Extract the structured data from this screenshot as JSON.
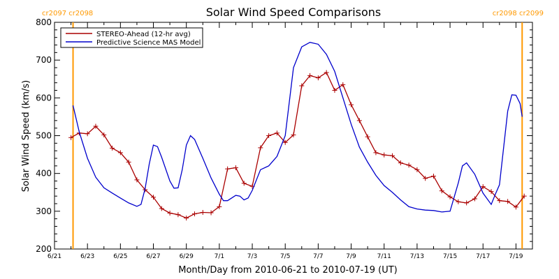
{
  "chart_data": {
    "type": "line",
    "title": "Solar Wind Speed Comparisons",
    "xlabel": "Month/Day from 2010-06-21 to 2010-07-19 (UT)",
    "ylabel": "Solar Wind Speed (km/s)",
    "xlim": [
      "2010-06-21",
      "2010-07-20"
    ],
    "ylim": [
      200,
      800
    ],
    "x_tick_labels": [
      {
        "date": "2010-06-21",
        "label": "6/21"
      },
      {
        "date": "2010-06-23",
        "label": "6/23"
      },
      {
        "date": "2010-06-25",
        "label": "6/25"
      },
      {
        "date": "2010-06-27",
        "label": "6/27"
      },
      {
        "date": "2010-06-29",
        "label": "6/29"
      },
      {
        "date": "2010-07-01",
        "label": "7/1"
      },
      {
        "date": "2010-07-03",
        "label": "7/3"
      },
      {
        "date": "2010-07-05",
        "label": "7/5"
      },
      {
        "date": "2010-07-07",
        "label": "7/7"
      },
      {
        "date": "2010-07-09",
        "label": "7/9"
      },
      {
        "date": "2010-07-11",
        "label": "7/11"
      },
      {
        "date": "2010-07-13",
        "label": "7/13"
      },
      {
        "date": "2010-07-15",
        "label": "7/15"
      },
      {
        "date": "2010-07-17",
        "label": "7/17"
      },
      {
        "date": "2010-07-19",
        "label": "7/19"
      }
    ],
    "y_ticks": [
      200,
      300,
      400,
      500,
      600,
      700,
      800
    ],
    "legend_position": "top-left",
    "rotation_markers": [
      {
        "date": "2010-06-22 03:00",
        "label": "cr2097 cr2098",
        "color": "#ff9900",
        "label_side": "left"
      },
      {
        "date": "2010-07-19 09:00",
        "label": "cr2098 cr2099",
        "color": "#ff9900",
        "label_side": "right"
      }
    ],
    "series": [
      {
        "name": "STEREO-Ahead (12-hr avg)",
        "color": "#aa0000",
        "marker": "plus",
        "points": [
          [
            "2010-06-22 00:00",
            495
          ],
          [
            "2010-06-22 12:00",
            507
          ],
          [
            "2010-06-23 00:00",
            505
          ],
          [
            "2010-06-23 12:00",
            525
          ],
          [
            "2010-06-24 00:00",
            502
          ],
          [
            "2010-06-24 12:00",
            467
          ],
          [
            "2010-06-25 00:00",
            455
          ],
          [
            "2010-06-25 12:00",
            430
          ],
          [
            "2010-06-26 00:00",
            383
          ],
          [
            "2010-06-26 12:00",
            357
          ],
          [
            "2010-06-27 00:00",
            337
          ],
          [
            "2010-06-27 12:00",
            307
          ],
          [
            "2010-06-28 00:00",
            295
          ],
          [
            "2010-06-28 12:00",
            291
          ],
          [
            "2010-06-29 00:00",
            282
          ],
          [
            "2010-06-29 12:00",
            293
          ],
          [
            "2010-06-30 00:00",
            297
          ],
          [
            "2010-06-30 12:00",
            296
          ],
          [
            "2010-07-01 00:00",
            312
          ],
          [
            "2010-07-01 12:00",
            412
          ],
          [
            "2010-07-02 00:00",
            415
          ],
          [
            "2010-07-02 12:00",
            374
          ],
          [
            "2010-07-03 00:00",
            366
          ],
          [
            "2010-07-03 12:00",
            468
          ],
          [
            "2010-07-04 00:00",
            500
          ],
          [
            "2010-07-04 12:00",
            507
          ],
          [
            "2010-07-05 00:00",
            482
          ],
          [
            "2010-07-05 12:00",
            502
          ],
          [
            "2010-07-06 00:00",
            632
          ],
          [
            "2010-07-06 12:00",
            659
          ],
          [
            "2010-07-07 00:00",
            653
          ],
          [
            "2010-07-07 12:00",
            667
          ],
          [
            "2010-07-08 00:00",
            620
          ],
          [
            "2010-07-08 12:00",
            635
          ],
          [
            "2010-07-09 00:00",
            582
          ],
          [
            "2010-07-09 12:00",
            540
          ],
          [
            "2010-07-10 00:00",
            497
          ],
          [
            "2010-07-10 12:00",
            455
          ],
          [
            "2010-07-11 00:00",
            449
          ],
          [
            "2010-07-11 12:00",
            447
          ],
          [
            "2010-07-12 00:00",
            428
          ],
          [
            "2010-07-12 12:00",
            422
          ],
          [
            "2010-07-13 00:00",
            410
          ],
          [
            "2010-07-13 12:00",
            387
          ],
          [
            "2010-07-14 00:00",
            393
          ],
          [
            "2010-07-14 12:00",
            354
          ],
          [
            "2010-07-15 00:00",
            338
          ],
          [
            "2010-07-15 12:00",
            325
          ],
          [
            "2010-07-16 00:00",
            322
          ],
          [
            "2010-07-16 12:00",
            333
          ],
          [
            "2010-07-17 00:00",
            365
          ],
          [
            "2010-07-17 12:00",
            352
          ],
          [
            "2010-07-18 00:00",
            328
          ],
          [
            "2010-07-18 12:00",
            326
          ],
          [
            "2010-07-19 00:00",
            311
          ],
          [
            "2010-07-19 12:00",
            340
          ]
        ]
      },
      {
        "name": "Predictive Science MAS Model",
        "color": "#0000cc",
        "marker": "none",
        "points": [
          [
            "2010-06-22 03:00",
            580
          ],
          [
            "2010-06-22 12:00",
            510
          ],
          [
            "2010-06-23 00:00",
            440
          ],
          [
            "2010-06-23 12:00",
            390
          ],
          [
            "2010-06-24 00:00",
            362
          ],
          [
            "2010-06-24 12:00",
            348
          ],
          [
            "2010-06-25 00:00",
            335
          ],
          [
            "2010-06-25 12:00",
            322
          ],
          [
            "2010-06-26 00:00",
            313
          ],
          [
            "2010-06-26 06:00",
            318
          ],
          [
            "2010-06-26 12:00",
            360
          ],
          [
            "2010-06-26 18:00",
            425
          ],
          [
            "2010-06-27 00:00",
            475
          ],
          [
            "2010-06-27 06:00",
            471
          ],
          [
            "2010-06-27 12:00",
            443
          ],
          [
            "2010-06-28 00:00",
            380
          ],
          [
            "2010-06-28 06:00",
            361
          ],
          [
            "2010-06-28 12:00",
            362
          ],
          [
            "2010-06-28 18:00",
            410
          ],
          [
            "2010-06-29 00:00",
            475
          ],
          [
            "2010-06-29 06:00",
            500
          ],
          [
            "2010-06-29 12:00",
            490
          ],
          [
            "2010-06-30 00:00",
            440
          ],
          [
            "2010-06-30 12:00",
            388
          ],
          [
            "2010-07-01 00:00",
            345
          ],
          [
            "2010-07-01 06:00",
            328
          ],
          [
            "2010-07-01 12:00",
            328
          ],
          [
            "2010-07-02 00:00",
            342
          ],
          [
            "2010-07-02 06:00",
            340
          ],
          [
            "2010-07-02 12:00",
            330
          ],
          [
            "2010-07-02 18:00",
            335
          ],
          [
            "2010-07-03 00:00",
            355
          ],
          [
            "2010-07-03 12:00",
            410
          ],
          [
            "2010-07-04 00:00",
            420
          ],
          [
            "2010-07-04 12:00",
            445
          ],
          [
            "2010-07-05 00:00",
            500
          ],
          [
            "2010-07-05 12:00",
            680
          ],
          [
            "2010-07-06 00:00",
            735
          ],
          [
            "2010-07-06 12:00",
            747
          ],
          [
            "2010-07-07 00:00",
            742
          ],
          [
            "2010-07-07 12:00",
            715
          ],
          [
            "2010-07-08 00:00",
            670
          ],
          [
            "2010-07-08 12:00",
            600
          ],
          [
            "2010-07-09 00:00",
            530
          ],
          [
            "2010-07-09 12:00",
            470
          ],
          [
            "2010-07-10 00:00",
            430
          ],
          [
            "2010-07-10 12:00",
            395
          ],
          [
            "2010-07-11 00:00",
            368
          ],
          [
            "2010-07-11 12:00",
            350
          ],
          [
            "2010-07-12 00:00",
            330
          ],
          [
            "2010-07-12 12:00",
            312
          ],
          [
            "2010-07-13 00:00",
            306
          ],
          [
            "2010-07-13 12:00",
            303
          ],
          [
            "2010-07-14 00:00",
            302
          ],
          [
            "2010-07-14 12:00",
            298
          ],
          [
            "2010-07-15 00:00",
            300
          ],
          [
            "2010-07-15 12:00",
            375
          ],
          [
            "2010-07-15 18:00",
            420
          ],
          [
            "2010-07-16 00:00",
            428
          ],
          [
            "2010-07-16 12:00",
            398
          ],
          [
            "2010-07-17 00:00",
            348
          ],
          [
            "2010-07-17 12:00",
            318
          ],
          [
            "2010-07-17 18:00",
            345
          ],
          [
            "2010-07-18 00:00",
            370
          ],
          [
            "2010-07-18 12:00",
            565
          ],
          [
            "2010-07-18 18:00",
            608
          ],
          [
            "2010-07-19 00:00",
            607
          ],
          [
            "2010-07-19 06:00",
            585
          ],
          [
            "2010-07-19 09:00",
            550
          ]
        ]
      }
    ]
  }
}
